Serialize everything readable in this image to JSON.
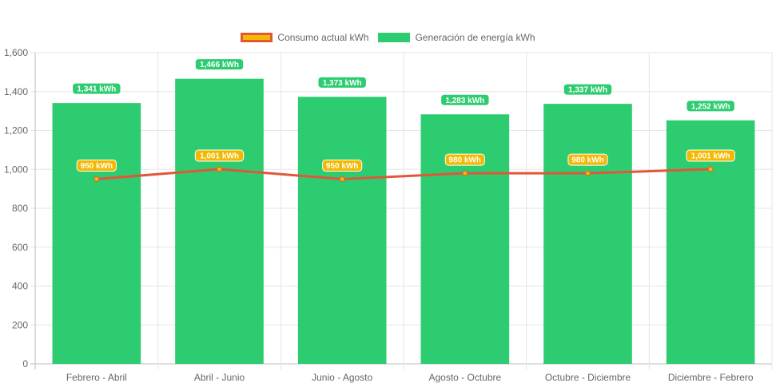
{
  "chart_data": {
    "type": "bar",
    "categories": [
      "Febrero - Abril",
      "Abril - Junio",
      "Junio - Agosto",
      "Agosto - Octubre",
      "Octubre - Diciembre",
      "Diciembre - Febrero"
    ],
    "series": [
      {
        "name": "Consumo actual kWh",
        "type": "line",
        "values": [
          950,
          1001,
          950,
          980,
          980,
          1001
        ],
        "labels": [
          "950 kWh",
          "1,001 kWh",
          "950 kWh",
          "980 kWh",
          "980 kWh",
          "1,001 kWh"
        ],
        "color": "#e0573a",
        "label_color": "#f5b800"
      },
      {
        "name": "Generación de energía kWh",
        "type": "bar",
        "values": [
          1341,
          1466,
          1373,
          1283,
          1337,
          1252
        ],
        "labels": [
          "1,341 kWh",
          "1,466 kWh",
          "1,373 kWh",
          "1,283 kWh",
          "1,337 kWh",
          "1,252 kWh"
        ],
        "color": "#2ecc71"
      }
    ],
    "ylim": [
      0,
      1600
    ],
    "yticks": [
      "0",
      "200",
      "400",
      "600",
      "800",
      "1,000",
      "1,200",
      "1,400",
      "1,600"
    ],
    "grid": true,
    "legend_position": "top"
  }
}
